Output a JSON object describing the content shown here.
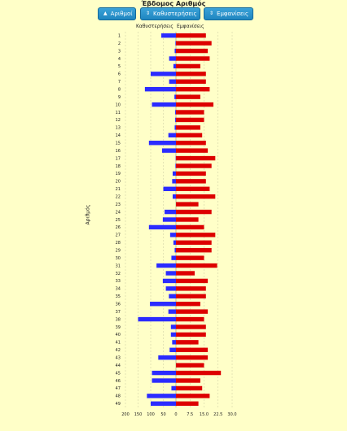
{
  "title": "Έβδομος Αριθμός",
  "buttons": [
    {
      "icon": "▲",
      "label": "Αριθμοί"
    },
    {
      "icon": "⇕",
      "label": "Καθυστερήσεις"
    },
    {
      "icon": "⇕",
      "label": "Εμφανίσεις"
    }
  ],
  "colors": {
    "delay_bar": "#2b2bff",
    "appearance_bar": "#dd0000",
    "button": "#2a93cc",
    "background": "#ffffc8"
  },
  "chart_data": {
    "type": "bar",
    "orientation": "horizontal-diverging",
    "ylabel": "Αριθμός",
    "categories": [
      "1",
      "2",
      "3",
      "4",
      "5",
      "6",
      "7",
      "8",
      "9",
      "10",
      "11",
      "12",
      "13",
      "14",
      "15",
      "16",
      "17",
      "18",
      "19",
      "20",
      "21",
      "22",
      "23",
      "24",
      "25",
      "26",
      "27",
      "28",
      "29",
      "30",
      "31",
      "32",
      "33",
      "34",
      "35",
      "36",
      "37",
      "38",
      "39",
      "40",
      "41",
      "42",
      "43",
      "44",
      "45",
      "46",
      "47",
      "48",
      "49"
    ],
    "series": [
      {
        "name": "Καθυστερήσεις",
        "side": "left",
        "xlim": [
          0,
          200
        ],
        "values": [
          58,
          2,
          5,
          27,
          10,
          100,
          27,
          123,
          6,
          95,
          3,
          3,
          5,
          30,
          107,
          55,
          1,
          2,
          13,
          15,
          50,
          13,
          0,
          45,
          52,
          107,
          23,
          10,
          5,
          18,
          77,
          40,
          52,
          40,
          28,
          103,
          30,
          150,
          20,
          20,
          15,
          25,
          70,
          0,
          95,
          95,
          18,
          115,
          100
        ]
      },
      {
        "name": "Εμφανίσεις",
        "side": "right",
        "xlim": [
          0,
          30
        ],
        "values": [
          16,
          19,
          17,
          18,
          13,
          16,
          16,
          18,
          13,
          20,
          15,
          15,
          13,
          14,
          16,
          17,
          21,
          19,
          16,
          16,
          18,
          21,
          12,
          19,
          12,
          15,
          21,
          19,
          19,
          15,
          22,
          10,
          17,
          16,
          16,
          13,
          17,
          15,
          16,
          16,
          12,
          17,
          17,
          15,
          24,
          13,
          14,
          18,
          12
        ]
      }
    ],
    "left_ticks": [
      "200",
      "150",
      "100",
      "50",
      "0"
    ],
    "right_ticks": [
      "7.5",
      "15.0",
      "22.5",
      "30.0"
    ],
    "grid": true
  }
}
